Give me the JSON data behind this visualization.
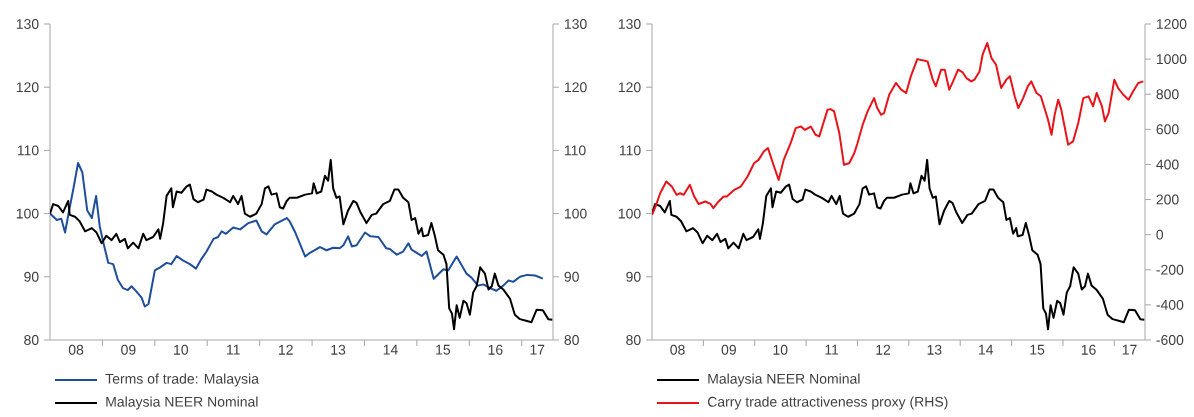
{
  "chart_data": [
    {
      "type": "line",
      "xlim": [
        "2008-01-01",
        "2017-08-07"
      ],
      "xticks": [
        {
          "value": "2009-01-01",
          "label": null
        },
        {
          "value": "2010-01-01",
          "label": null
        },
        {
          "value": "2011-01-01",
          "label": null
        },
        {
          "value": "2012-01-01",
          "label": null
        },
        {
          "value": "2013-01-01",
          "label": null
        },
        {
          "value": "2014-01-01",
          "label": null
        },
        {
          "value": "2015-01-01",
          "label": null
        },
        {
          "value": "2016-01-01",
          "label": null
        },
        {
          "value": "2017-01-01",
          "label": null
        },
        {
          "value": "2008-07-01",
          "label": "08"
        },
        {
          "value": "2009-07-01",
          "label": "09"
        },
        {
          "value": "2010-07-01",
          "label": "10"
        },
        {
          "value": "2011-07-01",
          "label": "11"
        },
        {
          "value": "2012-07-01",
          "label": "12"
        },
        {
          "value": "2013-07-01",
          "label": "13"
        },
        {
          "value": "2014-07-01",
          "label": "14"
        },
        {
          "value": "2015-07-01",
          "label": "15"
        },
        {
          "value": "2016-07-01",
          "label": "16"
        },
        {
          "value": "2017-04-19",
          "label": "17"
        }
      ],
      "ylim": [
        80,
        130
      ],
      "yticks": [
        80,
        90,
        100,
        110,
        120,
        130
      ],
      "y2lim": [
        80,
        130
      ],
      "y2ticks": [
        80,
        90,
        100,
        110,
        120,
        130
      ],
      "legend": "bottom",
      "series": [
        {
          "name": "Terms of trade: Malaysia",
          "color": "#1f4e9a",
          "x": [
            "2008-01-01",
            "2008-02-18",
            "2008-03-20",
            "2008-04-15",
            "2008-05-18",
            "2008-06-13",
            "2008-07-15",
            "2008-08-14",
            "2008-09-17",
            "2008-10-19",
            "2008-11-18",
            "2008-12-13",
            "2009-01-12",
            "2009-02-11",
            "2009-03-17",
            "2009-04-19",
            "2009-05-25",
            "2009-06-27",
            "2009-07-23",
            "2009-08-25",
            "2009-10-01",
            "2009-10-23",
            "2009-11-18",
            "2010-01-01",
            "2010-02-07",
            "2010-03-24",
            "2010-04-26",
            "2010-06-02",
            "2010-07-15",
            "2010-09-02",
            "2010-10-15",
            "2010-11-21",
            "2010-12-27",
            "2011-02-14",
            "2011-03-17",
            "2011-04-12",
            "2011-05-11",
            "2011-07-01",
            "2011-08-18",
            "2011-10-15",
            "2011-12-09",
            "2012-01-15",
            "2012-02-18",
            "2012-04-15",
            "2012-07-08",
            "2012-07-28",
            "2012-09-06",
            "2012-11-14",
            "2012-12-17",
            "2013-02-25",
            "2013-04-12",
            "2013-05-28",
            "2013-07-12",
            "2013-08-07",
            "2013-09-09",
            "2013-10-05",
            "2013-11-07",
            "2014-01-05",
            "2014-02-11",
            "2014-04-08",
            "2014-06-02",
            "2014-06-27",
            "2014-08-14",
            "2014-09-27",
            "2014-11-03",
            "2014-11-25",
            "2015-02-03",
            "2015-03-09",
            "2015-04-28",
            "2015-07-05",
            "2015-08-07",
            "2015-10-05",
            "2015-12-13",
            "2016-01-19",
            "2016-03-02",
            "2016-04-08",
            "2016-05-25",
            "2016-07-08",
            "2016-08-25",
            "2016-10-01",
            "2016-11-03",
            "2016-12-20",
            "2017-02-07",
            "2017-04-05",
            "2017-05-28"
          ],
          "values": [
            100,
            99,
            99.2,
            97,
            101,
            104,
            108,
            106.5,
            100.5,
            99.3,
            102.8,
            98,
            95,
            92.2,
            92,
            89.5,
            88.2,
            87.9,
            88.5,
            87.7,
            86.7,
            85.3,
            85.7,
            91,
            91.5,
            92.2,
            92,
            93.3,
            92.6,
            92,
            91.3,
            92.8,
            94,
            96,
            96.3,
            97.2,
            96.8,
            97.8,
            97.5,
            98.5,
            98.9,
            97.2,
            96.7,
            98.3,
            99.3,
            98.8,
            97,
            93.2,
            93.8,
            94.7,
            94.2,
            94.6,
            94.5,
            95,
            96.4,
            94.8,
            95,
            97,
            96.4,
            96.3,
            94.5,
            94.4,
            93.5,
            94,
            95.3,
            94.3,
            93.3,
            94,
            89.7,
            91.2,
            91,
            93.2,
            90.5,
            89.8,
            88.6,
            88.8,
            88.2,
            87.8,
            88.6,
            89.4,
            89.2,
            90,
            90.3,
            90.2,
            89.7
          ]
        },
        {
          "name": "Malaysia NEER Nominal",
          "color": "#000000",
          "x": [
            "2008-01-01",
            "2008-01-23",
            "2008-02-28",
            "2008-04-01",
            "2008-05-07",
            "2008-05-18",
            "2008-06-24",
            "2008-07-26",
            "2008-09-02",
            "2008-10-19",
            "2008-11-21",
            "2008-12-27",
            "2009-01-28",
            "2009-03-06",
            "2009-04-08",
            "2009-05-03",
            "2009-06-06",
            "2009-06-27",
            "2009-08-03",
            "2009-09-09",
            "2009-10-12",
            "2009-11-03",
            "2009-12-20",
            "2010-01-26",
            "2010-02-07",
            "2010-02-28",
            "2010-03-24",
            "2010-04-26",
            "2010-05-07",
            "2010-06-02",
            "2010-07-05",
            "2010-08-11",
            "2010-09-02",
            "2010-09-27",
            "2010-10-28",
            "2010-12-06",
            "2010-12-27",
            "2011-02-03",
            "2011-03-06",
            "2011-04-23",
            "2011-06-09",
            "2011-07-01",
            "2011-08-03",
            "2011-08-28",
            "2011-09-20",
            "2011-10-26",
            "2011-12-09",
            "2012-01-15",
            "2012-02-07",
            "2012-03-02",
            "2012-03-24",
            "2012-04-28",
            "2012-05-21",
            "2012-06-13",
            "2012-07-08",
            "2012-07-28",
            "2012-09-17",
            "2012-11-14",
            "2013-01-01",
            "2013-01-12",
            "2013-02-03",
            "2013-03-06",
            "2013-04-01",
            "2013-04-23",
            "2013-05-11",
            "2013-05-28",
            "2013-06-20",
            "2013-07-12",
            "2013-08-07",
            "2013-09-09",
            "2013-10-15",
            "2013-11-07",
            "2013-12-02",
            "2014-01-15",
            "2014-02-21",
            "2014-03-24",
            "2014-05-11",
            "2014-06-27",
            "2014-07-28",
            "2014-08-25",
            "2014-09-27",
            "2014-11-03",
            "2014-11-25",
            "2014-12-20",
            "2015-01-12",
            "2015-02-03",
            "2015-02-14",
            "2015-03-20",
            "2015-04-12",
            "2015-05-07",
            "2015-05-28",
            "2015-07-05",
            "2015-07-26",
            "2015-08-14",
            "2015-09-02",
            "2015-09-17",
            "2015-10-05",
            "2015-10-26",
            "2015-11-21",
            "2015-12-13",
            "2016-01-05",
            "2016-01-28",
            "2016-02-21",
            "2016-03-17",
            "2016-04-19",
            "2016-05-14",
            "2016-06-06",
            "2016-06-27",
            "2016-07-23",
            "2016-08-25",
            "2016-10-12",
            "2016-11-14",
            "2016-12-20",
            "2017-02-07",
            "2017-03-09",
            "2017-04-15",
            "2017-05-28",
            "2017-07-05",
            "2017-08-03"
          ],
          "values": [
            100,
            101.5,
            101.2,
            100.2,
            102,
            99.8,
            99.5,
            98.8,
            97.2,
            97.7,
            97,
            95.3,
            96.5,
            95.8,
            96.8,
            95.5,
            96,
            94.5,
            95.4,
            94.5,
            96.8,
            95.8,
            96.3,
            97.5,
            96,
            98.5,
            102.8,
            104,
            101,
            103.5,
            103.3,
            104.3,
            104.6,
            102.3,
            101.8,
            102.2,
            103.8,
            103.5,
            103,
            102.5,
            101.8,
            102.8,
            101.5,
            102.8,
            100,
            99.5,
            100,
            101.5,
            104,
            104.3,
            103,
            103.2,
            101,
            100.8,
            102,
            102.5,
            102.5,
            103,
            103.2,
            104.8,
            103.2,
            103.5,
            106,
            105.2,
            108.5,
            104,
            102.5,
            102.7,
            98.3,
            100.5,
            102,
            101.7,
            100.3,
            98.5,
            99.8,
            100,
            101.5,
            102,
            103.8,
            103.8,
            102.5,
            101.8,
            99,
            99.3,
            96.8,
            97.7,
            96.4,
            96.6,
            98.5,
            96.4,
            94.2,
            93.5,
            92,
            85,
            84.2,
            81.7,
            85.5,
            83.5,
            86.2,
            85.8,
            84,
            87.5,
            88.5,
            91.5,
            90.5,
            88,
            88.5,
            90.5,
            88.6,
            88,
            86.5,
            84,
            83.3,
            83,
            82.8,
            84.8,
            84.7,
            83.3,
            83.2
          ]
        }
      ]
    },
    {
      "type": "line",
      "xlim": [
        "2008-01-01",
        "2017-08-07"
      ],
      "xticks": [
        {
          "value": "2009-01-01",
          "label": null
        },
        {
          "value": "2010-01-01",
          "label": null
        },
        {
          "value": "2011-01-01",
          "label": null
        },
        {
          "value": "2012-01-01",
          "label": null
        },
        {
          "value": "2013-01-01",
          "label": null
        },
        {
          "value": "2014-01-01",
          "label": null
        },
        {
          "value": "2015-01-01",
          "label": null
        },
        {
          "value": "2016-01-01",
          "label": null
        },
        {
          "value": "2017-01-01",
          "label": null
        },
        {
          "value": "2008-07-01",
          "label": "08"
        },
        {
          "value": "2009-07-01",
          "label": "09"
        },
        {
          "value": "2010-07-01",
          "label": "10"
        },
        {
          "value": "2011-07-01",
          "label": "11"
        },
        {
          "value": "2012-07-01",
          "label": "12"
        },
        {
          "value": "2013-07-01",
          "label": "13"
        },
        {
          "value": "2014-07-01",
          "label": "14"
        },
        {
          "value": "2015-07-01",
          "label": "15"
        },
        {
          "value": "2016-07-01",
          "label": "16"
        },
        {
          "value": "2017-04-19",
          "label": "17"
        }
      ],
      "ylim": [
        80,
        130
      ],
      "yticks": [
        80,
        90,
        100,
        110,
        120,
        130
      ],
      "y2lim": [
        -600,
        1200
      ],
      "y2ticks": [
        -600,
        -400,
        -200,
        0,
        200,
        400,
        600,
        800,
        1000,
        1200
      ],
      "legend": "bottom",
      "series": [
        {
          "name": "Malaysia NEER Nominal",
          "color": "#000000",
          "x": [
            "2008-01-01",
            "2008-01-23",
            "2008-02-28",
            "2008-04-01",
            "2008-05-07",
            "2008-05-18",
            "2008-06-24",
            "2008-07-26",
            "2008-09-02",
            "2008-10-19",
            "2008-11-21",
            "2008-12-27",
            "2009-01-28",
            "2009-03-06",
            "2009-04-08",
            "2009-05-03",
            "2009-06-06",
            "2009-06-27",
            "2009-08-03",
            "2009-09-09",
            "2009-10-12",
            "2009-11-03",
            "2009-12-20",
            "2010-01-26",
            "2010-02-07",
            "2010-02-28",
            "2010-03-24",
            "2010-04-26",
            "2010-05-07",
            "2010-06-02",
            "2010-07-05",
            "2010-08-11",
            "2010-09-02",
            "2010-09-27",
            "2010-10-28",
            "2010-12-06",
            "2010-12-27",
            "2011-02-03",
            "2011-03-06",
            "2011-04-23",
            "2011-06-09",
            "2011-07-01",
            "2011-08-03",
            "2011-08-28",
            "2011-09-20",
            "2011-10-26",
            "2011-12-09",
            "2012-01-15",
            "2012-02-07",
            "2012-03-02",
            "2012-03-24",
            "2012-04-28",
            "2012-05-21",
            "2012-06-13",
            "2012-07-08",
            "2012-07-28",
            "2012-09-17",
            "2012-11-14",
            "2013-01-01",
            "2013-01-12",
            "2013-02-03",
            "2013-03-06",
            "2013-04-01",
            "2013-04-23",
            "2013-05-11",
            "2013-05-28",
            "2013-06-20",
            "2013-07-12",
            "2013-08-07",
            "2013-09-09",
            "2013-10-15",
            "2013-11-07",
            "2013-12-02",
            "2014-01-15",
            "2014-02-21",
            "2014-03-24",
            "2014-05-11",
            "2014-06-27",
            "2014-07-28",
            "2014-08-25",
            "2014-09-27",
            "2014-11-03",
            "2014-11-25",
            "2014-12-20",
            "2015-01-12",
            "2015-02-03",
            "2015-02-14",
            "2015-03-20",
            "2015-04-12",
            "2015-05-07",
            "2015-05-28",
            "2015-07-05",
            "2015-07-26",
            "2015-08-14",
            "2015-09-02",
            "2015-09-17",
            "2015-10-05",
            "2015-10-26",
            "2015-11-21",
            "2015-12-13",
            "2016-01-05",
            "2016-01-28",
            "2016-02-21",
            "2016-03-17",
            "2016-04-19",
            "2016-05-14",
            "2016-06-06",
            "2016-06-27",
            "2016-07-23",
            "2016-08-25",
            "2016-10-12",
            "2016-11-14",
            "2016-12-20",
            "2017-02-07",
            "2017-03-09",
            "2017-04-15",
            "2017-05-28",
            "2017-07-05",
            "2017-08-03"
          ],
          "values": [
            100,
            101.5,
            101.2,
            100.2,
            102,
            99.8,
            99.5,
            98.8,
            97.2,
            97.7,
            97,
            95.3,
            96.5,
            95.8,
            96.8,
            95.5,
            96,
            94.5,
            95.4,
            94.5,
            96.8,
            95.8,
            96.3,
            97.5,
            96,
            98.5,
            102.8,
            104,
            101,
            103.5,
            103.3,
            104.3,
            104.6,
            102.3,
            101.8,
            102.2,
            103.8,
            103.5,
            103,
            102.5,
            101.8,
            102.8,
            101.5,
            102.8,
            100,
            99.5,
            100,
            101.5,
            104,
            104.3,
            103,
            103.2,
            101,
            100.8,
            102,
            102.5,
            102.5,
            103,
            103.2,
            104.8,
            103.2,
            103.5,
            106,
            105.2,
            108.5,
            104,
            102.5,
            102.7,
            98.3,
            100.5,
            102,
            101.7,
            100.3,
            98.5,
            99.8,
            100,
            101.5,
            102,
            103.8,
            103.8,
            102.5,
            101.8,
            99,
            99.3,
            96.8,
            97.7,
            96.4,
            96.6,
            98.5,
            96.4,
            94.2,
            93.5,
            92,
            85,
            84.2,
            81.7,
            85.5,
            83.5,
            86.2,
            85.8,
            84,
            87.5,
            88.5,
            91.5,
            90.5,
            88,
            88.5,
            90.5,
            88.6,
            88,
            86.5,
            84,
            83.3,
            83,
            82.8,
            84.8,
            84.7,
            83.3,
            83.2
          ]
        },
        {
          "name": "Carry trade attractiveness proxy (RHS)",
          "color": "#e8141a",
          "axis": "y2",
          "x": [
            "2008-01-01",
            "2008-01-26",
            "2008-02-28",
            "2008-04-12",
            "2008-05-21",
            "2008-06-24",
            "2008-07-19",
            "2008-08-14",
            "2008-09-27",
            "2008-10-28",
            "2008-11-28",
            "2009-01-15",
            "2009-02-21",
            "2009-03-13",
            "2009-04-19",
            "2009-05-25",
            "2009-06-17",
            "2009-08-07",
            "2009-09-24",
            "2009-11-11",
            "2009-12-27",
            "2010-01-28",
            "2010-03-06",
            "2010-04-05",
            "2010-05-18",
            "2010-06-20",
            "2010-07-26",
            "2010-09-13",
            "2010-10-19",
            "2010-11-25",
            "2010-12-24",
            "2011-02-03",
            "2011-03-09",
            "2011-04-05",
            "2011-04-26",
            "2011-06-02",
            "2011-06-24",
            "2011-07-19",
            "2011-08-25",
            "2011-09-27",
            "2011-11-03",
            "2011-12-09",
            "2012-01-01",
            "2012-02-07",
            "2012-03-13",
            "2012-04-28",
            "2012-05-21",
            "2012-06-17",
            "2012-07-08",
            "2012-08-14",
            "2012-10-01",
            "2012-11-07",
            "2012-12-13",
            "2013-01-15",
            "2013-03-02",
            "2013-04-08",
            "2013-05-14",
            "2013-06-20",
            "2013-07-12",
            "2013-08-18",
            "2013-09-13",
            "2013-10-15",
            "2013-11-11",
            "2013-12-17",
            "2014-01-19",
            "2014-02-14",
            "2014-03-20",
            "2014-04-12",
            "2014-05-18",
            "2014-06-09",
            "2014-07-12",
            "2014-08-11",
            "2014-09-13",
            "2014-10-19",
            "2014-11-25",
            "2014-12-20",
            "2015-01-23",
            "2015-02-18",
            "2015-03-24",
            "2015-04-26",
            "2015-05-21",
            "2015-06-27",
            "2015-07-28",
            "2015-09-17",
            "2015-10-12",
            "2015-11-03",
            "2015-11-28",
            "2015-12-20",
            "2016-02-07",
            "2016-03-13",
            "2016-04-19",
            "2016-05-25",
            "2016-07-01",
            "2016-08-03",
            "2016-08-28",
            "2016-10-05",
            "2016-10-26",
            "2016-11-21",
            "2017-01-01",
            "2017-01-28",
            "2017-03-06",
            "2017-04-12",
            "2017-05-14",
            "2017-06-20",
            "2017-07-26"
          ],
          "values": [
            113,
            160,
            236,
            303,
            274,
            227,
            236,
            227,
            284,
            217,
            175,
            189,
            175,
            151,
            189,
            217,
            217,
            255,
            274,
            331,
            407,
            426,
            474,
            493,
            388,
            312,
            426,
            521,
            607,
            616,
            597,
            616,
            569,
            560,
            616,
            711,
            715,
            702,
            578,
            398,
            407,
            464,
            521,
            626,
            702,
            778,
            721,
            683,
            692,
            797,
            864,
            826,
            807,
            902,
            1000,
            993,
            987,
            883,
            845,
            940,
            940,
            826,
            873,
            940,
            924,
            892,
            873,
            883,
            930,
            1025,
            1092,
            1006,
            968,
            835,
            883,
            902,
            788,
            721,
            778,
            845,
            873,
            807,
            788,
            655,
            569,
            683,
            769,
            712,
            512,
            531,
            636,
            778,
            788,
            731,
            807,
            731,
            645,
            692,
            883,
            835,
            797,
            769,
            816,
            864,
            873
          ]
        }
      ]
    }
  ]
}
